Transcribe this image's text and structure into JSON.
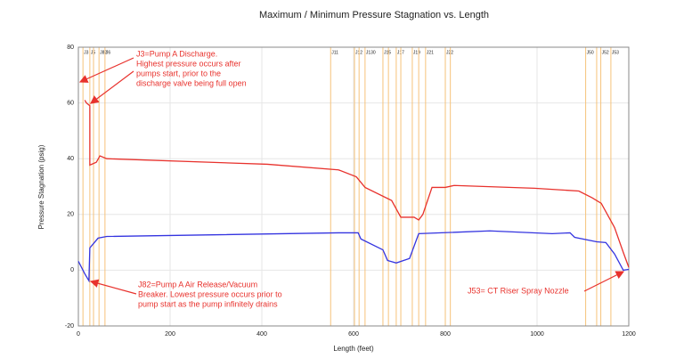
{
  "chart_data": {
    "type": "line",
    "title": "Maximum / Minimum Pressure Stagnation vs. Length",
    "xlabel": "Length (feet)",
    "ylabel": "Pressure Stagnation (psig)",
    "xlim": [
      0,
      1200
    ],
    "xticks": [
      0,
      200,
      400,
      600,
      800,
      1000,
      1200
    ],
    "ylim": [
      -20,
      80
    ],
    "yticks": [
      -20,
      0,
      20,
      40,
      60,
      80
    ],
    "grid": true,
    "junctions": {
      "color": "#f6c27a",
      "x": [
        10,
        25,
        33,
        45,
        58,
        550,
        602,
        612,
        625,
        664,
        676,
        693,
        703,
        728,
        742,
        757,
        800,
        811,
        1106,
        1130,
        1139,
        1161
      ],
      "labels": [
        "J3",
        "J5",
        null,
        "J82",
        "J6",
        "J11",
        "J12",
        null,
        "J130",
        "J15",
        null,
        "J17",
        null,
        "J19",
        null,
        "J21",
        "J22",
        null,
        "J50",
        null,
        "J52",
        "J53"
      ]
    },
    "series": [
      {
        "name": "Maximum",
        "color": "#e8322d",
        "x": [
          14,
          17.5,
          25,
          25,
          39,
          47,
          62,
          412,
          567,
          606,
          625,
          683,
          703,
          732,
          742,
          751,
          771,
          800,
          819,
          994,
          1091,
          1120,
          1140,
          1169,
          1188,
          1200
        ],
        "values": [
          61,
          60,
          59,
          37.7,
          38.7,
          41,
          40,
          38,
          36,
          33.5,
          29.7,
          25,
          19,
          19,
          18,
          20,
          29.7,
          29.7,
          30.4,
          29.4,
          28.4,
          26,
          24,
          15.3,
          6.4,
          1
        ]
      },
      {
        "name": "Minimum",
        "color": "#3434e0",
        "x": [
          0,
          14,
          23,
          25,
          43,
          62,
          567,
          610,
          616,
          664,
          674,
          693,
          722,
          742,
          897,
          1033,
          1072,
          1082,
          1130,
          1150,
          1169,
          1188,
          1200
        ],
        "values": [
          3.2,
          -1.3,
          -3.8,
          8,
          11.5,
          12.1,
          13.4,
          13.4,
          11.2,
          7.3,
          3.5,
          2.6,
          4.2,
          13.1,
          14.1,
          13.1,
          13.4,
          11.8,
          10.2,
          9.9,
          5.8,
          0,
          0.3
        ]
      }
    ],
    "annotations": [
      {
        "lines": [
          "J3=Pump A Discharge.",
          "Highest pressure occurs after",
          "pumps start, prior to the",
          "discharge valve being full open"
        ]
      },
      {
        "lines": [
          "J82=Pump A Air Release/Vacuum",
          "Breaker. Lowest pressure occurs prior to",
          "pump start as the pump infinitely drains"
        ]
      },
      {
        "lines": [
          "J53= CT Riser Spray Nozzle"
        ]
      }
    ]
  }
}
